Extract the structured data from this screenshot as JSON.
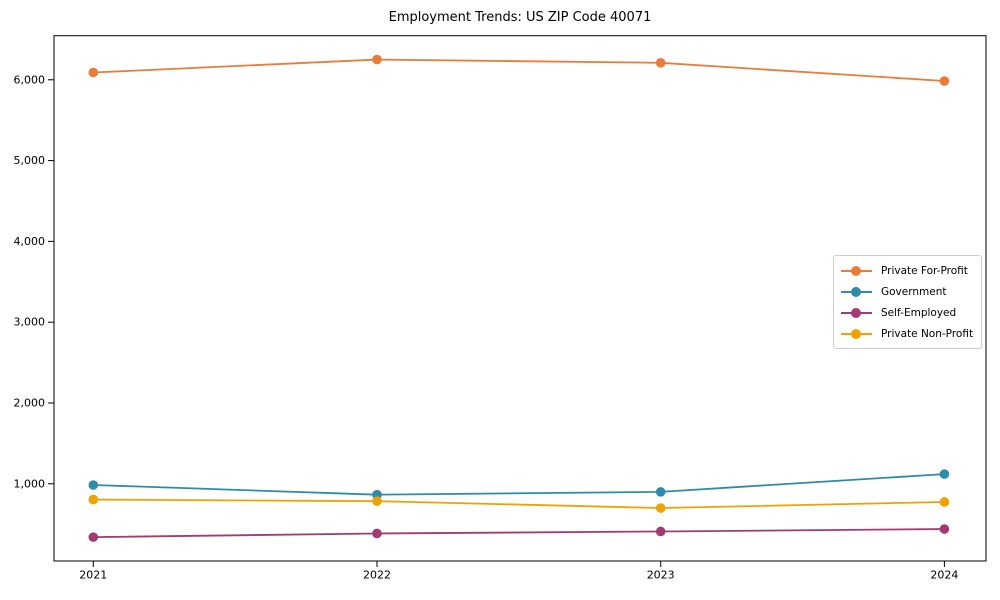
{
  "chart_data": {
    "type": "line",
    "title": "Employment Trends: US ZIP Code 40071",
    "xlabel": "",
    "ylabel": "",
    "grid": false,
    "marker": "circle",
    "legend_position": "center-right",
    "categories": [
      "2021",
      "2022",
      "2023",
      "2024"
    ],
    "series": [
      {
        "name": "Private For-Profit",
        "color": "#e87d3a",
        "values": [
          6090,
          6250,
          6210,
          5985
        ]
      },
      {
        "name": "Government",
        "color": "#2e8cab",
        "values": [
          985,
          865,
          900,
          1120
        ]
      },
      {
        "name": "Self-Employed",
        "color": "#a23b72",
        "values": [
          340,
          385,
          410,
          440
        ]
      },
      {
        "name": "Private Non-Profit",
        "color": "#f0a202",
        "values": [
          805,
          785,
          700,
          775
        ]
      }
    ],
    "yticks": [
      {
        "value": 1000,
        "label": "1,000"
      },
      {
        "value": 2000,
        "label": "2,000"
      },
      {
        "value": 3000,
        "label": "3,000"
      },
      {
        "value": 4000,
        "label": "4,000"
      },
      {
        "value": 5000,
        "label": "5,000"
      },
      {
        "value": 6000,
        "label": "6,000"
      }
    ],
    "ylim": [
      44.5,
      6545.5
    ],
    "axis_color": "#000000",
    "tick_label_color": "#000000"
  }
}
